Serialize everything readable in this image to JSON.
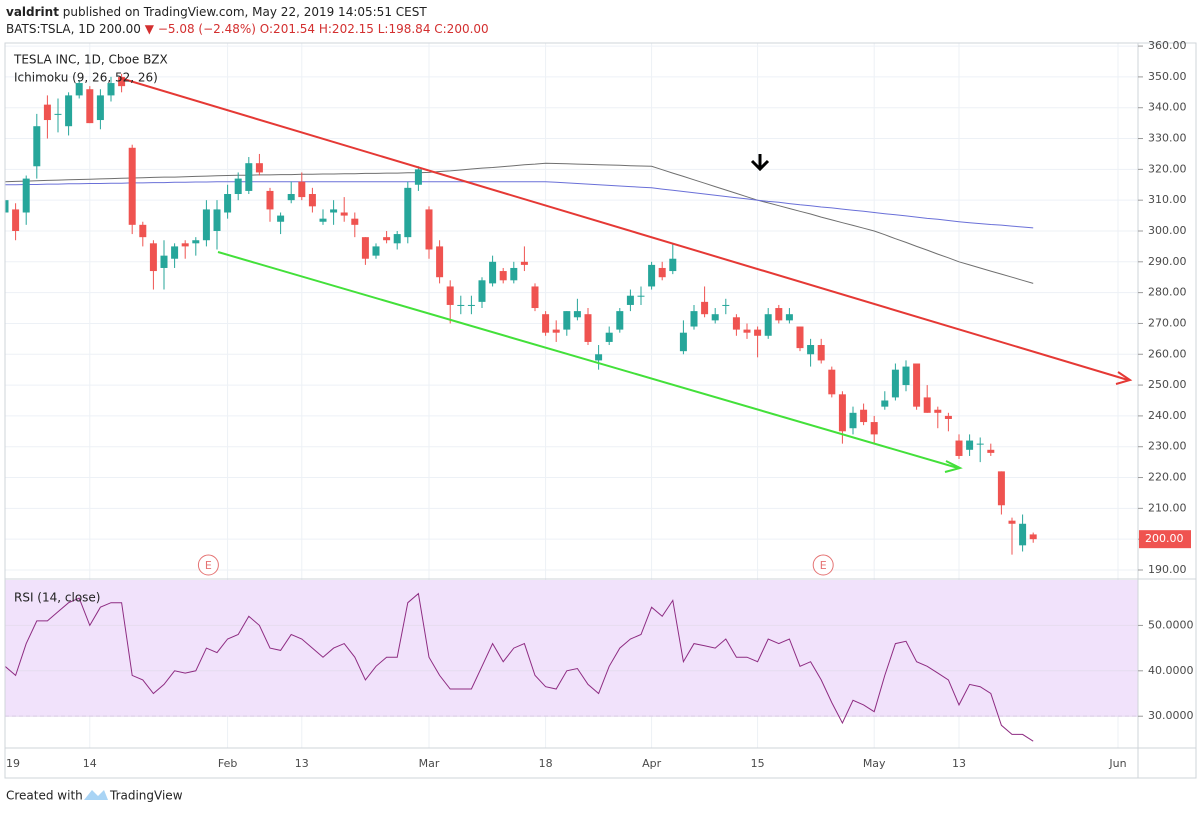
{
  "header": {
    "user": "valdrint",
    "published": "published on TradingView.com, May 22, 2019 14:05:51 CEST",
    "symbol": "BATS:TSLA, 1D",
    "price": "200.00",
    "change": "▼ −5.08 (−2.48%)",
    "ohlc": "O:201.54 H:202.15 L:198.84 C:200.00"
  },
  "chart_data": [
    {
      "type": "candlestick",
      "title": "TESLA INC, 1D, Cboe BZX",
      "indicator_label": "Ichimoku (9, 26, 52, 26)",
      "categories": [
        "19",
        null,
        null,
        null,
        null,
        null,
        null,
        null,
        "14",
        null,
        null,
        null,
        null,
        null,
        null,
        null,
        null,
        null,
        null,
        null,
        null,
        "Feb",
        null,
        null,
        null,
        null,
        null,
        null,
        "13",
        null,
        null,
        null,
        null,
        null,
        null,
        null,
        null,
        null,
        null,
        null,
        "Mar",
        null,
        null,
        null,
        null,
        null,
        null,
        null,
        null,
        null,
        null,
        "18",
        null,
        null,
        null,
        null,
        null,
        null,
        null,
        null,
        null,
        "Apr",
        null,
        null,
        null,
        null,
        null,
        null,
        null,
        null,
        null,
        "15",
        null,
        null,
        null,
        null,
        null,
        null,
        null,
        null,
        null,
        null,
        "May",
        null,
        null,
        null,
        null,
        null,
        null,
        null,
        "13",
        null,
        null,
        null,
        null,
        null,
        null,
        null,
        null,
        null,
        null,
        null,
        null,
        null,
        null,
        "Jun"
      ],
      "open": [
        306,
        307,
        306,
        321,
        341,
        338,
        334,
        344,
        346,
        336,
        344,
        350,
        327,
        302,
        296,
        288,
        291,
        296,
        296,
        297,
        300,
        306,
        312,
        313,
        322,
        313,
        303,
        310,
        316,
        312,
        303,
        306,
        306,
        304,
        298,
        292,
        298,
        296,
        298,
        315,
        307,
        295,
        282,
        276,
        276,
        277,
        283,
        287,
        284,
        290,
        282,
        273,
        268,
        268,
        272,
        273,
        258,
        264,
        268,
        276,
        279,
        282,
        288,
        287,
        261,
        269,
        277,
        271,
        276,
        272,
        268,
        268,
        266,
        275,
        271,
        269,
        260,
        263,
        255,
        247,
        236,
        242,
        238,
        243,
        246,
        250,
        257,
        246,
        242,
        240,
        232,
        229,
        231,
        229,
        222,
        206,
        198,
        201.54,
        null,
        null,
        null,
        null,
        null,
        null,
        null,
        null
      ],
      "high": [
        315,
        309,
        318,
        338,
        344,
        343,
        345,
        349,
        347,
        346,
        350,
        351,
        328,
        303,
        297,
        297,
        296,
        297,
        298,
        310,
        310,
        315,
        319,
        324,
        325,
        314,
        306,
        316,
        319,
        314,
        307,
        310,
        311,
        306,
        298,
        296,
        300,
        300,
        316,
        321,
        308,
        297,
        284,
        279,
        279,
        285,
        292,
        288,
        290,
        295,
        283,
        274,
        271,
        274,
        278,
        275,
        263,
        269,
        275,
        281,
        282,
        290,
        290,
        296,
        271,
        276,
        282,
        275,
        278,
        273,
        270,
        269,
        275,
        276,
        275,
        269,
        265,
        265,
        256,
        248,
        243,
        244,
        240,
        248,
        257,
        258,
        257,
        250,
        243,
        241,
        234,
        234,
        233,
        231,
        222,
        207,
        208,
        202.15,
        null,
        null,
        null,
        null,
        null,
        null,
        null,
        null
      ],
      "low": [
        298,
        297,
        302,
        317,
        330,
        332,
        331,
        343,
        335,
        333,
        342,
        345,
        299,
        295,
        281,
        281,
        288,
        291,
        292,
        295,
        294,
        304,
        310,
        312,
        318,
        303,
        299,
        309,
        310,
        306,
        302,
        302,
        303,
        298,
        289,
        291,
        296,
        294,
        296,
        313,
        291,
        283,
        270,
        273,
        273,
        275,
        282,
        283,
        283,
        287,
        274,
        266,
        264,
        266,
        271,
        263,
        255,
        263,
        267,
        274,
        276,
        281,
        284,
        286,
        260,
        268,
        272,
        270,
        273,
        266,
        265,
        259,
        265,
        270,
        270,
        261,
        256,
        257,
        246,
        231,
        234,
        237,
        231,
        242,
        245,
        248,
        242,
        241,
        236,
        235,
        226,
        227,
        225,
        227,
        208,
        195,
        196,
        198.84,
        null,
        null,
        null,
        null,
        null,
        null,
        null,
        null
      ],
      "close": [
        310,
        300,
        317,
        334,
        336,
        338,
        344,
        348,
        335,
        344,
        348,
        347,
        302,
        298,
        287,
        292,
        295,
        295,
        297,
        307,
        307,
        312,
        317,
        322,
        319,
        307,
        305,
        312,
        311,
        308,
        304,
        307,
        305,
        302,
        291,
        295,
        297,
        299,
        314,
        320,
        294,
        285,
        276,
        276,
        276,
        284,
        290,
        284,
        288,
        289,
        275,
        267,
        267,
        274,
        274,
        264,
        260,
        267,
        274,
        279,
        279,
        289,
        285,
        291,
        267,
        274,
        273,
        273,
        276,
        268,
        267,
        266,
        273,
        271,
        273,
        262,
        263,
        258,
        247,
        235,
        241,
        238,
        234,
        245,
        255,
        256,
        243,
        241,
        241,
        239,
        227,
        232,
        231,
        228,
        211,
        205,
        205,
        200,
        null,
        null,
        null,
        null,
        null,
        null,
        null,
        null
      ],
      "up_color": "#26a69a",
      "down_color": "#ef5350",
      "overlays": [
        {
          "color": "#6f6f6f",
          "values": [
            316,
            316.1,
            316.2,
            316.3,
            316.4,
            316.5,
            316.6,
            316.7,
            316.8,
            316.9,
            317,
            317.1,
            317.2,
            317.3,
            317.4,
            317.5,
            317.5,
            317.6,
            317.7,
            317.8,
            317.9,
            318,
            318.1,
            318.1,
            318.2,
            318.2,
            318.3,
            318.3,
            318.4,
            318.4,
            318.5,
            318.5,
            318.6,
            318.6,
            318.7,
            318.7,
            318.8,
            318.8,
            318.9,
            318.9,
            319,
            319.3,
            319.5,
            319.8,
            320.1,
            320.4,
            320.6,
            320.9,
            321.2,
            321.5,
            321.7,
            322,
            321.9,
            321.8,
            321.7,
            321.6,
            321.5,
            321.4,
            321.3,
            321.2,
            321.1,
            321,
            319.9,
            318.8,
            317.7,
            316.6,
            315.5,
            314.4,
            313.3,
            312.2,
            311.1,
            310,
            309.1,
            308.2,
            307.3,
            306.4,
            305.5,
            304.5,
            303.6,
            302.7,
            301.8,
            300.9,
            300,
            298.8,
            297.5,
            296.3,
            295,
            293.8,
            292.5,
            291.3,
            290,
            289,
            288,
            287,
            286,
            285,
            284,
            283,
            null,
            null,
            null,
            null,
            null,
            null,
            null,
            null
          ]
        },
        {
          "color": "#6a70d8",
          "values": [
            315,
            315,
            315.1,
            315.1,
            315.2,
            315.2,
            315.3,
            315.3,
            315.4,
            315.4,
            315.5,
            315.5,
            315.6,
            315.6,
            315.7,
            315.7,
            315.8,
            315.8,
            315.9,
            315.9,
            316,
            316,
            316,
            316,
            316,
            316,
            316,
            316,
            316,
            316,
            316,
            316,
            316,
            316,
            316,
            316,
            316,
            316,
            316,
            316,
            316,
            316,
            316,
            316,
            316,
            316,
            316,
            316,
            316,
            316,
            316,
            316,
            315.8,
            315.6,
            315.4,
            315.2,
            315,
            314.8,
            314.6,
            314.4,
            314.2,
            314,
            313.6,
            313.2,
            312.8,
            312.4,
            312,
            311.6,
            311.2,
            310.8,
            310.4,
            310,
            309.6,
            309.3,
            308.9,
            308.5,
            308.2,
            307.8,
            307.5,
            307.1,
            306.7,
            306.4,
            306,
            305.6,
            305.3,
            304.9,
            304.5,
            304.1,
            303.8,
            303.4,
            303,
            302.7,
            302.4,
            302.1,
            301.9,
            301.6,
            301.3,
            301,
            null,
            null,
            null,
            null,
            null,
            null,
            null,
            null
          ]
        }
      ],
      "ylim": [
        187.4,
        361
      ],
      "yticks": [
        {
          "value": 190,
          "label": "190.00"
        },
        {
          "value": 200,
          "label": "200.00"
        },
        {
          "value": 210,
          "label": "210.00"
        },
        {
          "value": 220,
          "label": "220.00"
        },
        {
          "value": 230,
          "label": "230.00"
        },
        {
          "value": 240,
          "label": "240.00"
        },
        {
          "value": 250,
          "label": "250.00"
        },
        {
          "value": 260,
          "label": "260.00"
        },
        {
          "value": 270,
          "label": "270.00"
        },
        {
          "value": 280,
          "label": "280.00"
        },
        {
          "value": 290,
          "label": "290.00"
        },
        {
          "value": 300,
          "label": "300.00"
        },
        {
          "value": 310,
          "label": "310.00"
        },
        {
          "value": 320,
          "label": "320.00"
        },
        {
          "value": 330,
          "label": "330.00"
        },
        {
          "value": 340,
          "label": "340.00"
        },
        {
          "value": 350,
          "label": "350.00"
        },
        {
          "value": 360,
          "label": "360.00"
        }
      ],
      "last_price_label": "200.00",
      "earnings_markers": [
        "E",
        "E"
      ],
      "grid": true
    },
    {
      "type": "line",
      "title": "RSI (14, close)",
      "color": "#8e2c82",
      "values": [
        41,
        39,
        46,
        51,
        51,
        53,
        55,
        56,
        50,
        54,
        55,
        55,
        39,
        38,
        35,
        37,
        40,
        39.5,
        40,
        45,
        44,
        47,
        48,
        52,
        50,
        45,
        44.5,
        48,
        47,
        45,
        43,
        45,
        46,
        43,
        38,
        41,
        43,
        43,
        55,
        57,
        43,
        39,
        36,
        36,
        36,
        41,
        46,
        42,
        45,
        46,
        39,
        36.5,
        36,
        40,
        40.5,
        37,
        35,
        41,
        45,
        47,
        48,
        54,
        52,
        55.5,
        42,
        46,
        45.5,
        45,
        47,
        43,
        43,
        42,
        47,
        46,
        47,
        41,
        42,
        38,
        33,
        28.5,
        33.5,
        32.5,
        31,
        39,
        46,
        46.5,
        42,
        41,
        39.5,
        38,
        32.5,
        37,
        36.5,
        35,
        28,
        26,
        26,
        24.5,
        null,
        null,
        null,
        null,
        null,
        null,
        null,
        null
      ],
      "ylim": [
        23,
        60
      ],
      "yticks": [
        {
          "value": 30,
          "label": "30.0000"
        },
        {
          "value": 40,
          "label": "40.0000"
        },
        {
          "value": 50,
          "label": "50.0000"
        }
      ],
      "band": [
        30,
        70
      ],
      "band_color": "#f1e2fb",
      "grid": true
    }
  ],
  "footer": {
    "created": "Created with",
    "brand": "TradingView"
  }
}
